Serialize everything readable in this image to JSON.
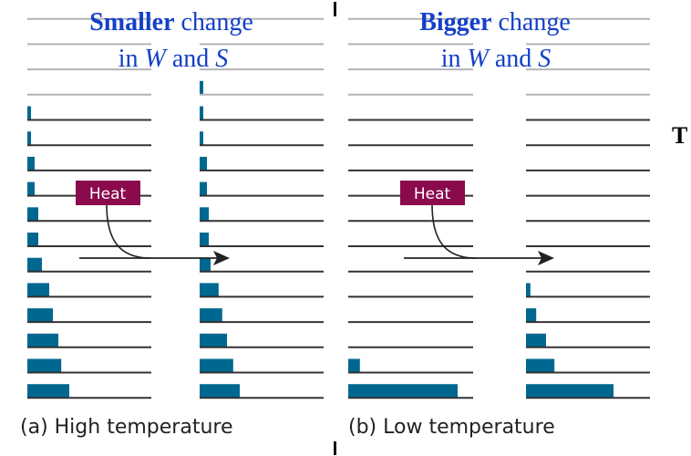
{
  "panels": [
    {
      "title_bold": "Smaller",
      "title_rest": " change",
      "title_line2_pre": "in ",
      "title_W": "W",
      "title_and": " and ",
      "title_S": "S",
      "caption": "(a) High temperature",
      "heat_label": "Heat",
      "before_occupancy": [
        0,
        0,
        0,
        0,
        1,
        1,
        2,
        2,
        3,
        3,
        4,
        6,
        7,
        8.5,
        9.3,
        11.5
      ],
      "after_occupancy": [
        0,
        0,
        0,
        1,
        1,
        1,
        2,
        2,
        2.5,
        2.5,
        3,
        5.2,
        6.2,
        7.5,
        9.2,
        11
      ]
    },
    {
      "title_bold": "Bigger",
      "title_rest": " change",
      "title_line2_pre": "in ",
      "title_W": "W",
      "title_and": " and ",
      "title_S": "S",
      "caption": "(b) Low temperature",
      "heat_label": "Heat",
      "before_occupancy": [
        0,
        0,
        0,
        0,
        0,
        0,
        0,
        0,
        0,
        0,
        0,
        0,
        0,
        0,
        3.2,
        30
      ],
      "after_occupancy": [
        0,
        0,
        0,
        0,
        0,
        0,
        0,
        0,
        0,
        0,
        0,
        1.2,
        2.8,
        5.5,
        7.8,
        24
      ]
    }
  ],
  "side_label": "T",
  "colors": {
    "bar": "#006890",
    "heat": "#8a0a4c",
    "title": "#1440c8",
    "line": "#333333",
    "faint_line": "#b4b4b8"
  }
}
